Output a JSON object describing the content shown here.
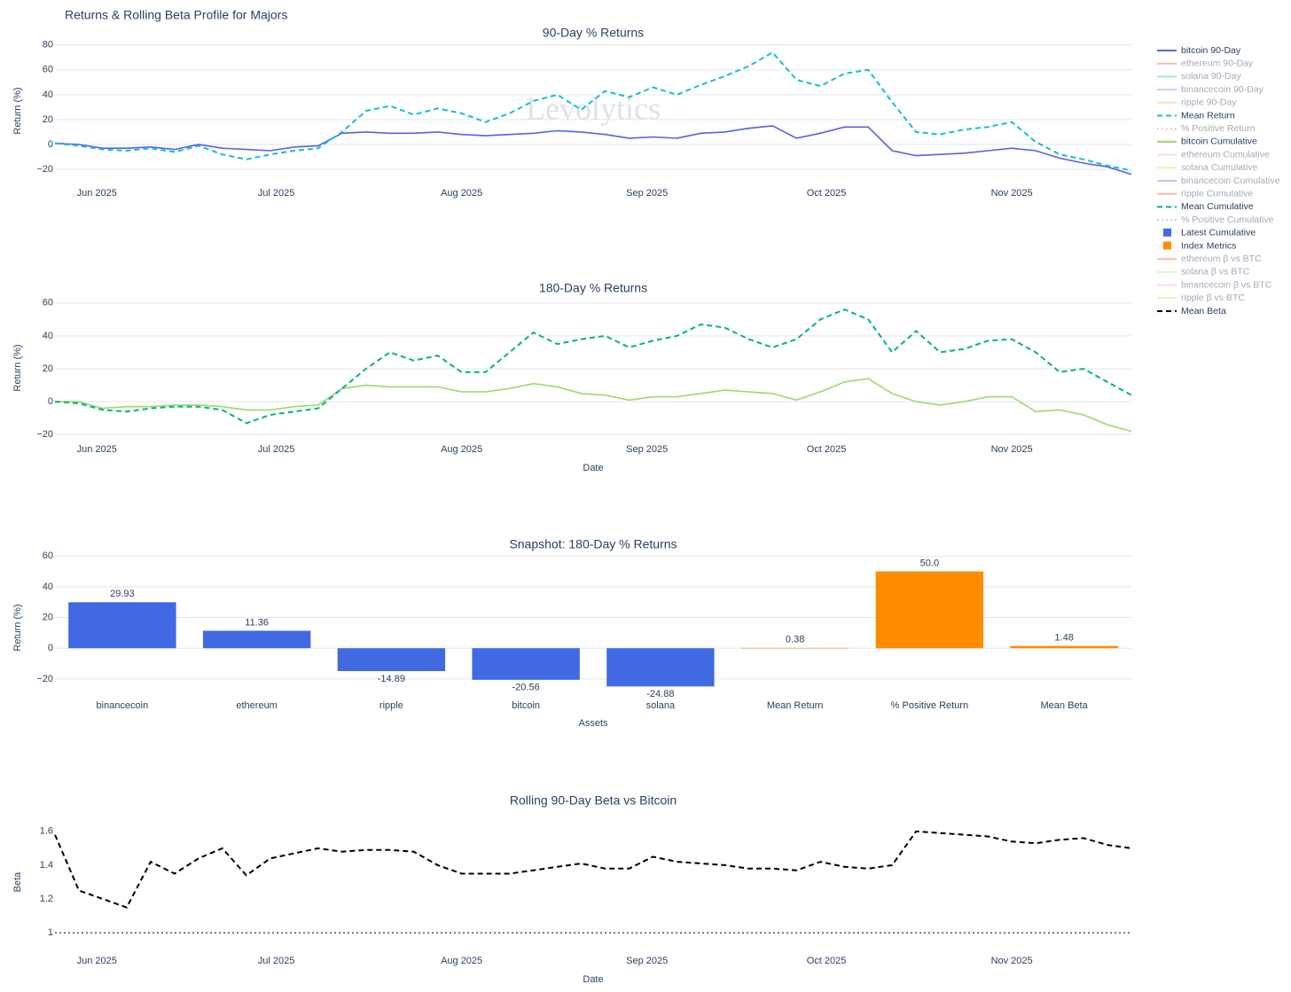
{
  "title": "Returns & Rolling Beta Profile for Majors",
  "watermark": "Levolytics",
  "legend": {
    "entries": [
      {
        "name": "bitcoin 90-Day",
        "color": "#5a5fe8",
        "symbol": "line",
        "dash": "solid",
        "visible": true
      },
      {
        "name": "ethereum 90-Day",
        "color": "#EF553B",
        "symbol": "line",
        "dash": "solid",
        "visible": false
      },
      {
        "name": "solana 90-Day",
        "color": "#00cc96",
        "symbol": "line",
        "dash": "solid",
        "visible": false
      },
      {
        "name": "binancecoin 90-Day",
        "color": "#ab63fa",
        "symbol": "line",
        "dash": "solid",
        "visible": false
      },
      {
        "name": "ripple 90-Day",
        "color": "#FFA15A",
        "symbol": "line",
        "dash": "solid",
        "visible": false
      },
      {
        "name": "Mean Return",
        "color": "#17becf",
        "symbol": "line",
        "dash": "dash",
        "visible": true
      },
      {
        "name": "% Positive Return",
        "color": "#ff6692",
        "symbol": "line",
        "dash": "dot",
        "visible": false
      },
      {
        "name": "bitcoin Cumulative",
        "color": "#9cd86a",
        "symbol": "line",
        "dash": "solid",
        "visible": true
      },
      {
        "name": "ethereum Cumulative",
        "color": "#FF97FF",
        "symbol": "line",
        "dash": "solid",
        "visible": false
      },
      {
        "name": "solana Cumulative",
        "color": "#FECB52",
        "symbol": "line",
        "dash": "solid",
        "visible": false
      },
      {
        "name": "binancecoin Cumulative",
        "color": "#636efa",
        "symbol": "line",
        "dash": "solid",
        "visible": false
      },
      {
        "name": "ripple Cumulative",
        "color": "#EF553B",
        "symbol": "line",
        "dash": "solid",
        "visible": false
      },
      {
        "name": "Mean Cumulative",
        "color": "#00b386",
        "symbol": "line",
        "dash": "dash",
        "visible": true
      },
      {
        "name": "% Positive Cumulative",
        "color": "#ab63fa",
        "symbol": "line",
        "dash": "dot",
        "visible": false
      },
      {
        "name": "Latest Cumulative",
        "color": "#4169e1",
        "symbol": "square",
        "dash": "solid",
        "visible": true
      },
      {
        "name": "Index Metrics",
        "color": "#ff8c00",
        "symbol": "square",
        "dash": "solid",
        "visible": true
      },
      {
        "name": "ethereum β vs BTC",
        "color": "#EF553B",
        "symbol": "line",
        "dash": "solid",
        "visible": false
      },
      {
        "name": "solana β vs BTC",
        "color": "#B6E880",
        "symbol": "line",
        "dash": "solid",
        "visible": false
      },
      {
        "name": "binancecoin β vs BTC",
        "color": "#FF97FF",
        "symbol": "line",
        "dash": "solid",
        "visible": false
      },
      {
        "name": "ripple β vs BTC",
        "color": "#FECB52",
        "symbol": "line",
        "dash": "solid",
        "visible": false
      },
      {
        "name": "Mean Beta",
        "color": "#000000",
        "symbol": "line",
        "dash": "dash",
        "visible": true
      }
    ]
  },
  "chart_data": [
    {
      "type": "line",
      "title": "90-Day % Returns",
      "y_title": "Return (%)",
      "grid": true,
      "x": [
        -7,
        -3,
        1,
        5,
        9,
        13,
        17,
        21,
        25,
        29,
        33,
        37,
        41,
        45,
        49,
        53,
        57,
        61,
        65,
        69,
        73,
        77,
        81,
        85,
        89,
        93,
        97,
        101,
        105,
        109,
        113,
        117,
        121,
        125,
        129,
        133,
        137,
        141,
        145,
        149,
        153,
        157,
        161,
        165,
        169,
        173
      ],
      "xlim": [
        -7,
        173
      ],
      "xticks": [
        {
          "value": 0,
          "label": "Jun 2025"
        },
        {
          "value": 30,
          "label": "Jul 2025"
        },
        {
          "value": 61,
          "label": "Aug 2025"
        },
        {
          "value": 92,
          "label": "Sep 2025"
        },
        {
          "value": 122,
          "label": "Oct 2025"
        },
        {
          "value": 153,
          "label": "Nov 2025"
        }
      ],
      "ylim": [
        -25,
        82
      ],
      "yticks": [
        {
          "value": -20,
          "label": "−20"
        },
        0,
        20,
        40,
        60,
        80
      ],
      "series": [
        {
          "name": "bitcoin 90-Day",
          "color": "#5a5fe8",
          "dash": "solid",
          "values": [
            1,
            0,
            -3,
            -3,
            -2,
            -4,
            0,
            -3,
            -4,
            -5,
            -2,
            -1,
            9,
            10,
            9,
            9,
            10,
            8,
            7,
            8,
            9,
            11,
            10,
            8,
            5,
            6,
            5,
            9,
            10,
            13,
            15,
            5,
            9,
            14,
            14,
            -5,
            -9,
            -8,
            -7,
            -5,
            -3,
            -5,
            -11,
            -15,
            -18,
            -24
          ]
        },
        {
          "name": "Mean Return",
          "color": "#17becf",
          "dash": "dash",
          "values": [
            1,
            -1,
            -4,
            -5,
            -3,
            -6,
            -1,
            -8,
            -12,
            -8,
            -5,
            -3,
            10,
            27,
            31,
            24,
            29,
            25,
            18,
            25,
            35,
            40,
            28,
            43,
            38,
            46,
            40,
            48,
            55,
            63,
            74,
            52,
            47,
            57,
            60,
            34,
            10,
            8,
            12,
            14,
            18,
            2,
            -8,
            -12,
            -17,
            -21
          ]
        }
      ]
    },
    {
      "type": "line",
      "title": "180-Day % Returns",
      "y_title": "Return (%)",
      "x_title": "Date",
      "grid": true,
      "x": [
        -7,
        -3,
        1,
        5,
        9,
        13,
        17,
        21,
        25,
        29,
        33,
        37,
        41,
        45,
        49,
        53,
        57,
        61,
        65,
        69,
        73,
        77,
        81,
        85,
        89,
        93,
        97,
        101,
        105,
        109,
        113,
        117,
        121,
        125,
        129,
        133,
        137,
        141,
        145,
        149,
        153,
        157,
        161,
        165,
        169,
        173
      ],
      "xlim": [
        -7,
        173
      ],
      "xticks": [
        {
          "value": 0,
          "label": "Jun 2025"
        },
        {
          "value": 30,
          "label": "Jul 2025"
        },
        {
          "value": 61,
          "label": "Aug 2025"
        },
        {
          "value": 92,
          "label": "Sep 2025"
        },
        {
          "value": 122,
          "label": "Oct 2025"
        },
        {
          "value": 153,
          "label": "Nov 2025"
        }
      ],
      "ylim": [
        -22,
        62
      ],
      "yticks": [
        {
          "value": -20,
          "label": "−20"
        },
        0,
        20,
        40,
        60
      ],
      "series": [
        {
          "name": "bitcoin Cumulative",
          "color": "#9cd86a",
          "dash": "solid",
          "values": [
            0,
            0,
            -4,
            -3,
            -3,
            -2,
            -2,
            -3,
            -5,
            -5,
            -3,
            -2,
            8,
            10,
            9,
            9,
            9,
            6,
            6,
            8,
            11,
            9,
            5,
            4,
            1,
            3,
            3,
            5,
            7,
            6,
            5,
            1,
            6,
            12,
            14,
            5,
            0,
            -2,
            0,
            3,
            3,
            -6,
            -5,
            -8,
            -14,
            -18
          ]
        },
        {
          "name": "Mean Cumulative",
          "color": "#00b386",
          "dash": "dash",
          "values": [
            0,
            -1,
            -5,
            -6,
            -4,
            -3,
            -3,
            -5,
            -13,
            -8,
            -6,
            -4,
            8,
            20,
            30,
            25,
            28,
            18,
            18,
            30,
            42,
            35,
            38,
            40,
            33,
            37,
            40,
            47,
            45,
            38,
            33,
            38,
            50,
            56,
            50,
            30,
            43,
            30,
            32,
            37,
            38,
            30,
            18,
            20,
            12,
            4
          ]
        }
      ]
    },
    {
      "type": "bar",
      "title": "Snapshot: 180-Day % Returns",
      "y_title": "Return (%)",
      "x_title": "Assets",
      "grid": true,
      "categories": [
        "binancecoin",
        "ethereum",
        "ripple",
        "bitcoin",
        "solana",
        "Mean Return",
        "% Positive Return",
        "Mean Beta"
      ],
      "values": [
        29.93,
        11.36,
        -14.89,
        -20.56,
        -24.88,
        0.38,
        50.0,
        1.48
      ],
      "value_labels": [
        "29.93",
        "11.36",
        "-14.89",
        "-20.56",
        "-24.88",
        "0.38",
        "50.0",
        "1.48"
      ],
      "colors": [
        "#4169e1",
        "#4169e1",
        "#4169e1",
        "#4169e1",
        "#4169e1",
        "#e3c9a0",
        "#ff8c00",
        "#ff8c00"
      ],
      "ylim": [
        -27,
        63
      ],
      "yticks": [
        {
          "value": -20,
          "label": "−20"
        },
        0,
        20,
        40,
        60
      ]
    },
    {
      "type": "line",
      "title": "Rolling 90-Day Beta vs Bitcoin",
      "y_title": "Beta",
      "x_title": "Date",
      "grid": false,
      "x": [
        -7,
        -3,
        1,
        5,
        9,
        13,
        17,
        21,
        25,
        29,
        33,
        37,
        41,
        45,
        49,
        53,
        57,
        61,
        65,
        69,
        73,
        77,
        81,
        85,
        89,
        93,
        97,
        101,
        105,
        109,
        113,
        117,
        121,
        125,
        129,
        133,
        137,
        141,
        145,
        149,
        153,
        157,
        161,
        165,
        169,
        173
      ],
      "xlim": [
        -7,
        173
      ],
      "xticks": [
        {
          "value": 0,
          "label": "Jun 2025"
        },
        {
          "value": 30,
          "label": "Jul 2025"
        },
        {
          "value": 61,
          "label": "Aug 2025"
        },
        {
          "value": 92,
          "label": "Sep 2025"
        },
        {
          "value": 122,
          "label": "Oct 2025"
        },
        {
          "value": 153,
          "label": "Nov 2025"
        }
      ],
      "ylim": [
        0.98,
        1.62
      ],
      "yticks": [
        1,
        1.2,
        1.4,
        1.6
      ],
      "reference_line": 1,
      "series": [
        {
          "name": "Mean Beta",
          "color": "#000000",
          "dash": "dash",
          "values": [
            1.58,
            1.25,
            1.2,
            1.15,
            1.42,
            1.35,
            1.44,
            1.5,
            1.34,
            1.44,
            1.47,
            1.5,
            1.48,
            1.49,
            1.49,
            1.48,
            1.4,
            1.35,
            1.35,
            1.35,
            1.37,
            1.39,
            1.41,
            1.38,
            1.38,
            1.45,
            1.42,
            1.41,
            1.4,
            1.38,
            1.38,
            1.37,
            1.42,
            1.39,
            1.38,
            1.4,
            1.6,
            1.59,
            1.58,
            1.57,
            1.54,
            1.53,
            1.55,
            1.56,
            1.52,
            1.5
          ]
        }
      ]
    }
  ]
}
